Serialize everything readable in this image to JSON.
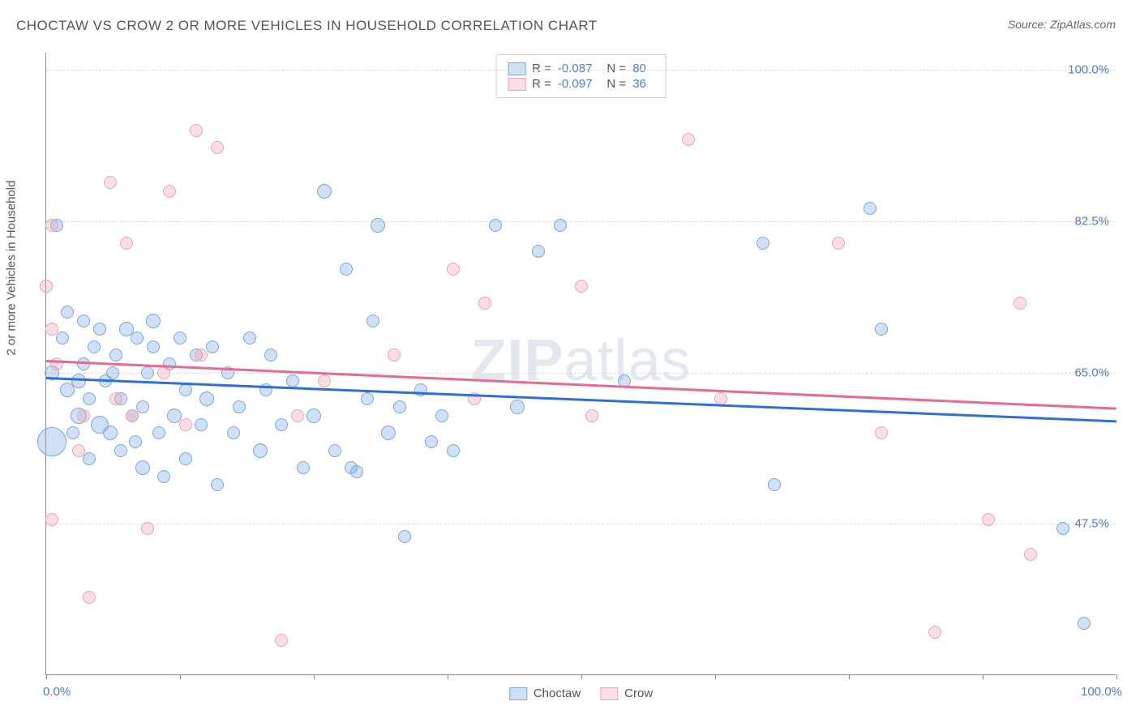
{
  "title": "CHOCTAW VS CROW 2 OR MORE VEHICLES IN HOUSEHOLD CORRELATION CHART",
  "source_prefix": "Source: ",
  "source_name": "ZipAtlas.com",
  "ylabel": "2 or more Vehicles in Household",
  "watermark": "ZIPatlas",
  "chart": {
    "type": "scatter",
    "xlim": [
      0,
      100
    ],
    "ylim": [
      30,
      102
    ],
    "x_ticks": [
      0,
      12.5,
      25,
      37.5,
      50,
      62.5,
      75,
      87.5,
      100
    ],
    "x_tick_labels": {
      "0": "0.0%",
      "100": "100.0%"
    },
    "y_gridlines": [
      47.5,
      65.0,
      82.5,
      100.0
    ],
    "y_tick_labels": [
      "47.5%",
      "65.0%",
      "82.5%",
      "100.0%"
    ],
    "y_label_color": "#4a7dd8",
    "x_label_color": "#4a7dd8",
    "grid_color": "#dddddd",
    "axis_color": "#888888",
    "background_color": "#ffffff",
    "series": [
      {
        "name": "Choctaw",
        "fill": "rgba(120,165,230,0.35)",
        "stroke": "#7aa8e0",
        "trend_color": "#2e6fd9",
        "R": "-0.087",
        "N": "80",
        "trend": {
          "x1": 0,
          "y1": 64.5,
          "x2": 100,
          "y2": 59.5
        },
        "points": [
          {
            "x": 0.5,
            "y": 65,
            "r": 9
          },
          {
            "x": 0.5,
            "y": 57,
            "r": 18
          },
          {
            "x": 1,
            "y": 82,
            "r": 8
          },
          {
            "x": 1.5,
            "y": 69,
            "r": 8
          },
          {
            "x": 2,
            "y": 63,
            "r": 9
          },
          {
            "x": 2,
            "y": 72,
            "r": 8
          },
          {
            "x": 2.5,
            "y": 58,
            "r": 8
          },
          {
            "x": 3,
            "y": 64,
            "r": 9
          },
          {
            "x": 3,
            "y": 60,
            "r": 10
          },
          {
            "x": 3.5,
            "y": 66,
            "r": 8
          },
          {
            "x": 4,
            "y": 62,
            "r": 8
          },
          {
            "x": 4,
            "y": 55,
            "r": 8
          },
          {
            "x": 4.5,
            "y": 68,
            "r": 8
          },
          {
            "x": 5,
            "y": 59,
            "r": 11
          },
          {
            "x": 5,
            "y": 70,
            "r": 8
          },
          {
            "x": 5.5,
            "y": 64,
            "r": 8
          },
          {
            "x": 6,
            "y": 58,
            "r": 9
          },
          {
            "x": 6.5,
            "y": 67,
            "r": 8
          },
          {
            "x": 7,
            "y": 62,
            "r": 8
          },
          {
            "x": 7,
            "y": 56,
            "r": 8
          },
          {
            "x": 7.5,
            "y": 70,
            "r": 9
          },
          {
            "x": 8,
            "y": 60,
            "r": 8
          },
          {
            "x": 8.5,
            "y": 69,
            "r": 8
          },
          {
            "x": 9,
            "y": 61,
            "r": 8
          },
          {
            "x": 9,
            "y": 54,
            "r": 9
          },
          {
            "x": 9.5,
            "y": 65,
            "r": 8
          },
          {
            "x": 10,
            "y": 68,
            "r": 8
          },
          {
            "x": 10,
            "y": 71,
            "r": 9
          },
          {
            "x": 10.5,
            "y": 58,
            "r": 8
          },
          {
            "x": 11,
            "y": 53,
            "r": 8
          },
          {
            "x": 11.5,
            "y": 66,
            "r": 8
          },
          {
            "x": 12,
            "y": 60,
            "r": 9
          },
          {
            "x": 12.5,
            "y": 69,
            "r": 8
          },
          {
            "x": 13,
            "y": 55,
            "r": 8
          },
          {
            "x": 13,
            "y": 63,
            "r": 8
          },
          {
            "x": 14,
            "y": 67,
            "r": 8
          },
          {
            "x": 14.5,
            "y": 59,
            "r": 8
          },
          {
            "x": 15,
            "y": 62,
            "r": 9
          },
          {
            "x": 15.5,
            "y": 68,
            "r": 8
          },
          {
            "x": 16,
            "y": 52,
            "r": 8
          },
          {
            "x": 17,
            "y": 65,
            "r": 8
          },
          {
            "x": 17.5,
            "y": 58,
            "r": 8
          },
          {
            "x": 18,
            "y": 61,
            "r": 8
          },
          {
            "x": 19,
            "y": 69,
            "r": 8
          },
          {
            "x": 20,
            "y": 56,
            "r": 9
          },
          {
            "x": 20.5,
            "y": 63,
            "r": 8
          },
          {
            "x": 21,
            "y": 67,
            "r": 8
          },
          {
            "x": 22,
            "y": 59,
            "r": 8
          },
          {
            "x": 23,
            "y": 64,
            "r": 8
          },
          {
            "x": 24,
            "y": 54,
            "r": 8
          },
          {
            "x": 25,
            "y": 60,
            "r": 9
          },
          {
            "x": 26,
            "y": 86,
            "r": 9
          },
          {
            "x": 27,
            "y": 56,
            "r": 8
          },
          {
            "x": 28,
            "y": 77,
            "r": 8
          },
          {
            "x": 28.5,
            "y": 54,
            "r": 8
          },
          {
            "x": 29,
            "y": 53.5,
            "r": 8
          },
          {
            "x": 30,
            "y": 62,
            "r": 8
          },
          {
            "x": 30.5,
            "y": 71,
            "r": 8
          },
          {
            "x": 31,
            "y": 82,
            "r": 9
          },
          {
            "x": 32,
            "y": 58,
            "r": 9
          },
          {
            "x": 33,
            "y": 61,
            "r": 8
          },
          {
            "x": 33.5,
            "y": 46,
            "r": 8
          },
          {
            "x": 35,
            "y": 63,
            "r": 8
          },
          {
            "x": 36,
            "y": 57,
            "r": 8
          },
          {
            "x": 37,
            "y": 60,
            "r": 8
          },
          {
            "x": 38,
            "y": 56,
            "r": 8
          },
          {
            "x": 42,
            "y": 82,
            "r": 8
          },
          {
            "x": 44,
            "y": 61,
            "r": 9
          },
          {
            "x": 46,
            "y": 79,
            "r": 8
          },
          {
            "x": 48,
            "y": 82,
            "r": 8
          },
          {
            "x": 54,
            "y": 64,
            "r": 8
          },
          {
            "x": 67,
            "y": 80,
            "r": 8
          },
          {
            "x": 68,
            "y": 52,
            "r": 8
          },
          {
            "x": 77,
            "y": 84,
            "r": 8
          },
          {
            "x": 78,
            "y": 70,
            "r": 8
          },
          {
            "x": 95,
            "y": 47,
            "r": 8
          },
          {
            "x": 97,
            "y": 36,
            "r": 8
          },
          {
            "x": 3.5,
            "y": 71,
            "r": 8
          },
          {
            "x": 6.2,
            "y": 65,
            "r": 8
          },
          {
            "x": 8.3,
            "y": 57,
            "r": 8
          }
        ]
      },
      {
        "name": "Crow",
        "fill": "rgba(240,160,180,0.35)",
        "stroke": "#eda3b6",
        "trend_color": "#e86a8e",
        "R": "-0.097",
        "N": "36",
        "trend": {
          "x1": 0,
          "y1": 66.5,
          "x2": 100,
          "y2": 61
        },
        "points": [
          {
            "x": 0,
            "y": 75,
            "r": 8
          },
          {
            "x": 0.5,
            "y": 82,
            "r": 8
          },
          {
            "x": 0.5,
            "y": 70,
            "r": 8
          },
          {
            "x": 0.5,
            "y": 48,
            "r": 8
          },
          {
            "x": 1,
            "y": 66,
            "r": 8
          },
          {
            "x": 3,
            "y": 56,
            "r": 8
          },
          {
            "x": 3.5,
            "y": 60,
            "r": 8
          },
          {
            "x": 4,
            "y": 39,
            "r": 8
          },
          {
            "x": 6,
            "y": 87,
            "r": 8
          },
          {
            "x": 6.5,
            "y": 62,
            "r": 8
          },
          {
            "x": 7.5,
            "y": 80,
            "r": 8
          },
          {
            "x": 8,
            "y": 60,
            "r": 8
          },
          {
            "x": 9.5,
            "y": 47,
            "r": 8
          },
          {
            "x": 11,
            "y": 65,
            "r": 8
          },
          {
            "x": 11.5,
            "y": 86,
            "r": 8
          },
          {
            "x": 13,
            "y": 59,
            "r": 8
          },
          {
            "x": 14,
            "y": 93,
            "r": 8
          },
          {
            "x": 14.5,
            "y": 67,
            "r": 8
          },
          {
            "x": 16,
            "y": 91,
            "r": 8
          },
          {
            "x": 22,
            "y": 34,
            "r": 8
          },
          {
            "x": 23.5,
            "y": 60,
            "r": 8
          },
          {
            "x": 26,
            "y": 64,
            "r": 8
          },
          {
            "x": 32.5,
            "y": 67,
            "r": 8
          },
          {
            "x": 38,
            "y": 77,
            "r": 8
          },
          {
            "x": 40,
            "y": 62,
            "r": 8
          },
          {
            "x": 41,
            "y": 73,
            "r": 8
          },
          {
            "x": 50,
            "y": 75,
            "r": 8
          },
          {
            "x": 51,
            "y": 60,
            "r": 8
          },
          {
            "x": 60,
            "y": 92,
            "r": 8
          },
          {
            "x": 63,
            "y": 62,
            "r": 8
          },
          {
            "x": 74,
            "y": 80,
            "r": 8
          },
          {
            "x": 78,
            "y": 58,
            "r": 8
          },
          {
            "x": 83,
            "y": 35,
            "r": 8
          },
          {
            "x": 88,
            "y": 48,
            "r": 8
          },
          {
            "x": 91,
            "y": 73,
            "r": 8
          },
          {
            "x": 92,
            "y": 44,
            "r": 8
          }
        ]
      }
    ]
  },
  "legend_top_labels": {
    "R": "R =",
    "N": "N ="
  },
  "legend_bottom": [
    "Choctaw",
    "Crow"
  ]
}
